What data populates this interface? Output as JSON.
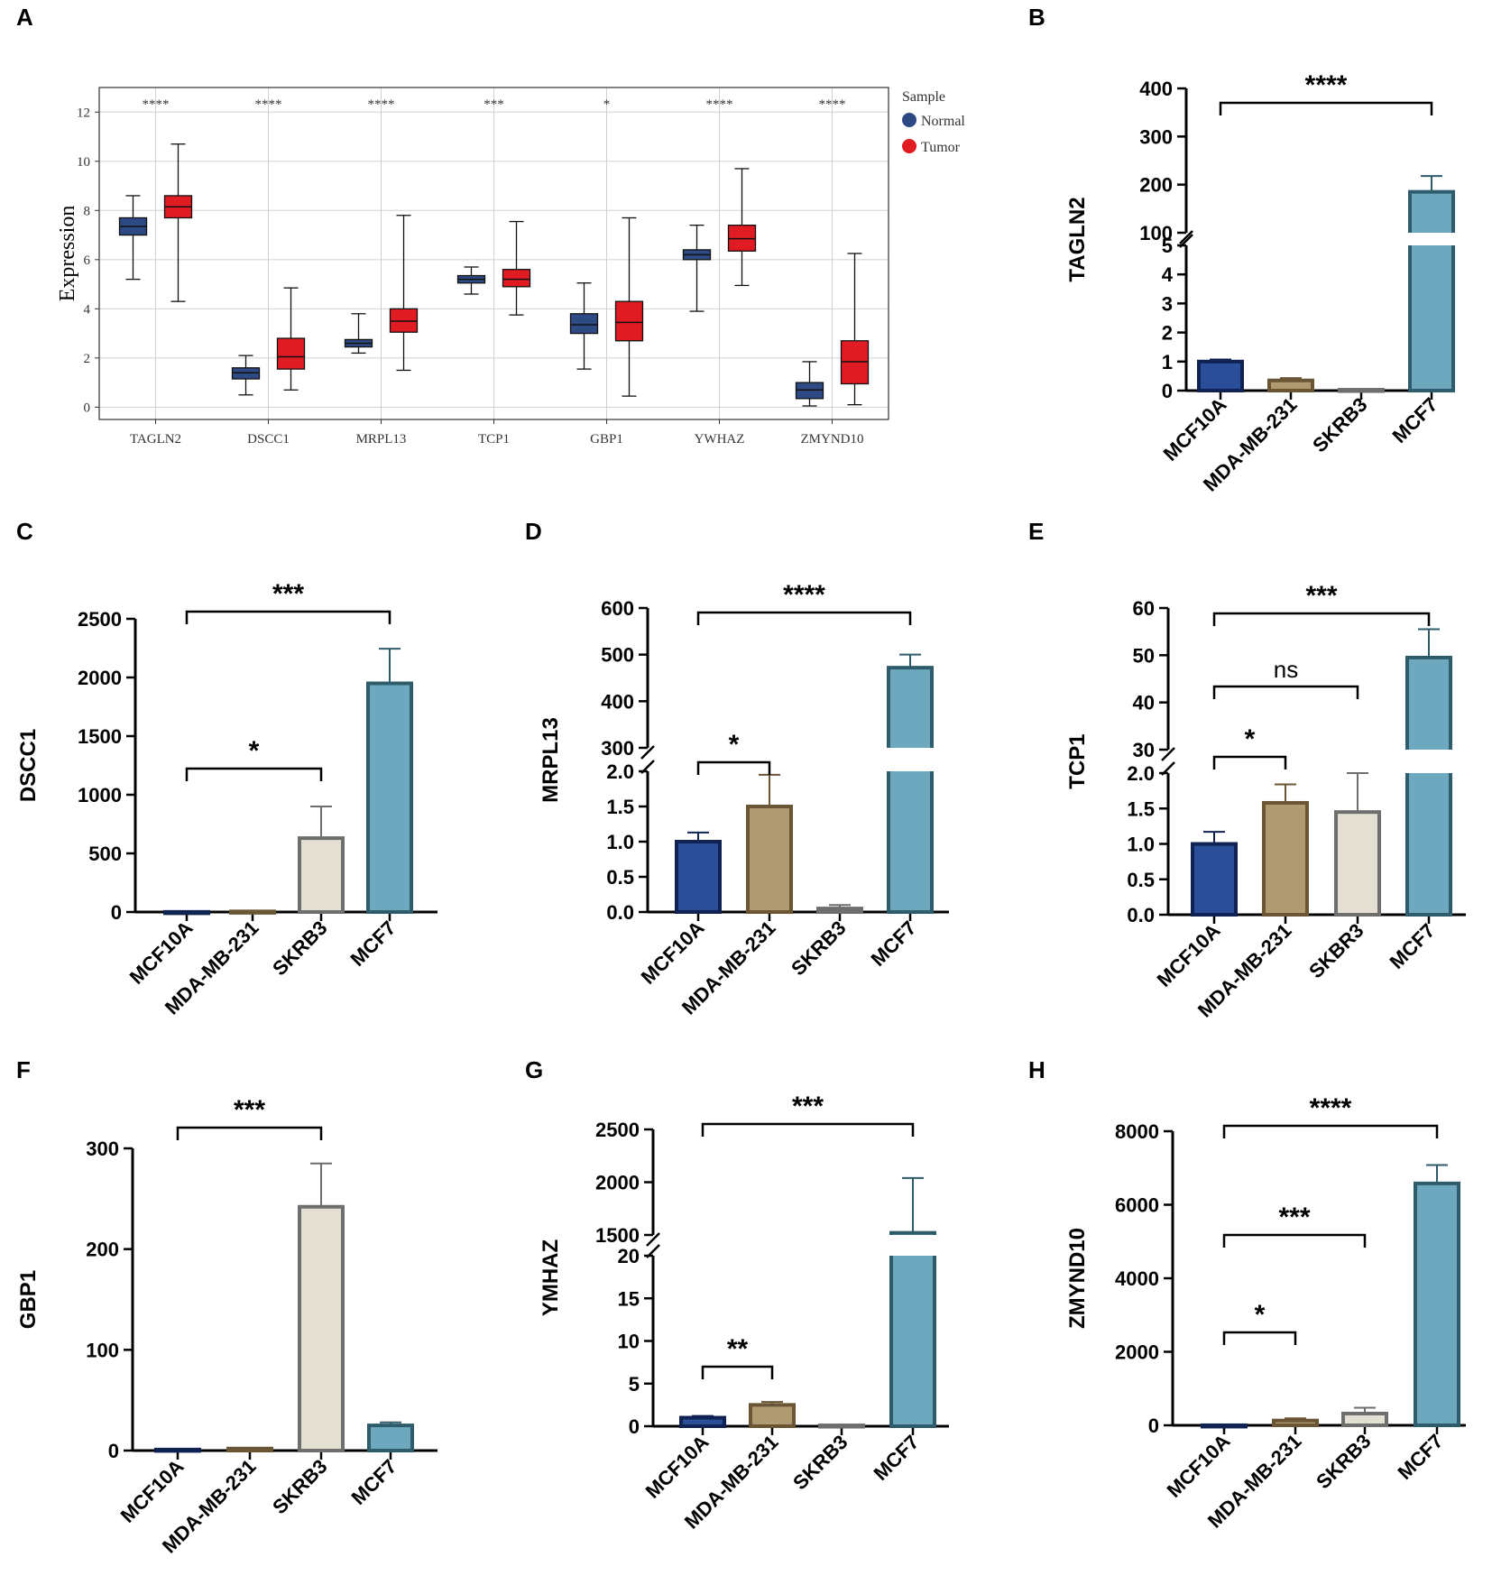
{
  "colors": {
    "normal": "#2e4a84",
    "tumor": "#e01b22",
    "bar_fills": [
      "#2a4f98",
      "#b09a72",
      "#e3dfd3",
      "#6ea8bf"
    ],
    "bar_strokes": [
      "#0f2252",
      "#6a5634",
      "#6e6e6e",
      "#2f5c6b"
    ],
    "grid": "#d0d0d0",
    "axis": "#000000"
  },
  "chart_data": [
    {
      "panel": "A",
      "type": "boxplot",
      "ylabel": "Expression",
      "ylim": [
        -0.5,
        13
      ],
      "yticks": [
        0,
        2,
        4,
        6,
        8,
        10,
        12
      ],
      "categories": [
        "TAGLN2",
        "DSCC1",
        "MRPL13",
        "TCP1",
        "GBP1",
        "YWHAZ",
        "ZMYND10"
      ],
      "significance": [
        "****",
        "****",
        "****",
        "***",
        "*",
        "****",
        "****"
      ],
      "legend_title": "Sample",
      "series": [
        {
          "name": "Normal",
          "boxes": [
            {
              "min": 5.2,
              "q1": 7.0,
              "median": 7.35,
              "q3": 7.7,
              "max": 8.6
            },
            {
              "min": 0.5,
              "q1": 1.15,
              "median": 1.4,
              "q3": 1.6,
              "max": 2.1
            },
            {
              "min": 2.2,
              "q1": 2.45,
              "median": 2.6,
              "q3": 2.75,
              "max": 3.8
            },
            {
              "min": 4.6,
              "q1": 5.05,
              "median": 5.2,
              "q3": 5.35,
              "max": 5.7
            },
            {
              "min": 1.55,
              "q1": 3.0,
              "median": 3.35,
              "q3": 3.8,
              "max": 5.05
            },
            {
              "min": 3.9,
              "q1": 6.0,
              "median": 6.2,
              "q3": 6.4,
              "max": 7.4
            },
            {
              "min": 0.05,
              "q1": 0.35,
              "median": 0.7,
              "q3": 1.0,
              "max": 1.85
            }
          ]
        },
        {
          "name": "Tumor",
          "boxes": [
            {
              "min": 4.3,
              "q1": 7.7,
              "median": 8.15,
              "q3": 8.6,
              "max": 10.7
            },
            {
              "min": 0.7,
              "q1": 1.55,
              "median": 2.05,
              "q3": 2.8,
              "max": 4.85
            },
            {
              "min": 1.5,
              "q1": 3.05,
              "median": 3.5,
              "q3": 4.0,
              "max": 7.8
            },
            {
              "min": 3.75,
              "q1": 4.9,
              "median": 5.2,
              "q3": 5.6,
              "max": 7.55
            },
            {
              "min": 0.45,
              "q1": 2.7,
              "median": 3.45,
              "q3": 4.3,
              "max": 7.7
            },
            {
              "min": 4.95,
              "q1": 6.35,
              "median": 6.85,
              "q3": 7.4,
              "max": 9.7
            },
            {
              "min": 0.1,
              "q1": 0.95,
              "median": 1.85,
              "q3": 2.7,
              "max": 6.25
            }
          ]
        }
      ]
    },
    {
      "panel": "B",
      "type": "bar",
      "ylabel": "TAGLN2",
      "categories": [
        "MCF10A",
        "MDA-MB-231",
        "SKRB3",
        "MCF7"
      ],
      "values": [
        1.0,
        0.35,
        0.03,
        185
      ],
      "errors": [
        0.07,
        0.08,
        0.02,
        33
      ],
      "axis_break": true,
      "lower_ticks": [
        0,
        1,
        2,
        3,
        4,
        5
      ],
      "upper_ticks": [
        100,
        200,
        300,
        400
      ],
      "comparisons": [
        {
          "from": 0,
          "to": 3,
          "label": "****"
        }
      ]
    },
    {
      "panel": "C",
      "type": "bar",
      "ylabel": "DSCC1",
      "categories": [
        "MCF10A",
        "MDA-MB-231",
        "SKRB3",
        "MCF7"
      ],
      "values": [
        1.0,
        5,
        630,
        1950
      ],
      "errors": [
        0,
        0,
        270,
        295
      ],
      "ylim": [
        0,
        2500
      ],
      "yticks": [
        0,
        500,
        1000,
        1500,
        2000,
        2500
      ],
      "comparisons": [
        {
          "from": 0,
          "to": 2,
          "label": "*"
        },
        {
          "from": 0,
          "to": 3,
          "label": "***"
        }
      ]
    },
    {
      "panel": "D",
      "type": "bar",
      "ylabel": "MRPL13",
      "categories": [
        "MCF10A",
        "MDA-MB-231",
        "SKRB3",
        "MCF7"
      ],
      "values": [
        1.0,
        1.5,
        0.05,
        472
      ],
      "errors": [
        0.13,
        0.45,
        0.05,
        28
      ],
      "axis_break": true,
      "lower_ticks": [
        "0.0",
        "0.5",
        "1.0",
        "1.5",
        "2.0"
      ],
      "upper_ticks": [
        300,
        400,
        500,
        600
      ],
      "comparisons": [
        {
          "from": 0,
          "to": 1,
          "label": "*"
        },
        {
          "from": 0,
          "to": 3,
          "label": "****"
        }
      ]
    },
    {
      "panel": "E",
      "type": "bar",
      "ylabel": "TCP1",
      "categories": [
        "MCF10A",
        "MDA-MB-231",
        "SKBR3",
        "MCF7"
      ],
      "values": [
        1.0,
        1.58,
        1.45,
        49.5
      ],
      "errors": [
        0.17,
        0.26,
        0.55,
        6
      ],
      "axis_break": true,
      "lower_ticks": [
        "0.0",
        "0.5",
        "1.0",
        "1.5",
        "2.0"
      ],
      "upper_ticks": [
        30,
        40,
        50,
        60
      ],
      "comparisons": [
        {
          "from": 0,
          "to": 1,
          "label": "*"
        },
        {
          "from": 0,
          "to": 2,
          "label": "ns"
        },
        {
          "from": 0,
          "to": 3,
          "label": "***"
        }
      ]
    },
    {
      "panel": "F",
      "type": "bar",
      "ylabel": "GBP1",
      "categories": [
        "MCF10A",
        "MDA-MB-231",
        "SKRB3",
        "MCF7"
      ],
      "values": [
        1.0,
        2.0,
        242,
        25
      ],
      "errors": [
        0,
        0.4,
        43,
        3
      ],
      "ylim": [
        0,
        300
      ],
      "yticks": [
        0,
        100,
        200,
        300
      ],
      "comparisons": [
        {
          "from": 0,
          "to": 2,
          "label": "***"
        }
      ]
    },
    {
      "panel": "G",
      "type": "bar",
      "ylabel": "YMHAZ",
      "categories": [
        "MCF10A",
        "MDA-MB-231",
        "SKRB3",
        "MCF7"
      ],
      "values": [
        1.0,
        2.5,
        0.1,
        1520
      ],
      "errors": [
        0.2,
        0.35,
        0,
        520
      ],
      "axis_break": true,
      "lower_ticks": [
        0,
        5,
        10,
        15,
        20
      ],
      "upper_ticks": [
        1500,
        2000,
        2500
      ],
      "comparisons": [
        {
          "from": 0,
          "to": 1,
          "label": "**"
        },
        {
          "from": 0,
          "to": 3,
          "label": "***"
        }
      ]
    },
    {
      "panel": "H",
      "type": "bar",
      "ylabel": "ZMYND10",
      "categories": [
        "MCF10A",
        "MDA-MB-231",
        "SKRB3",
        "MCF7"
      ],
      "values": [
        1.0,
        130,
        320,
        6580
      ],
      "errors": [
        0,
        60,
        160,
        500
      ],
      "ylim": [
        0,
        8000
      ],
      "yticks": [
        0,
        2000,
        4000,
        6000,
        8000
      ],
      "comparisons": [
        {
          "from": 0,
          "to": 1,
          "label": "*"
        },
        {
          "from": 0,
          "to": 2,
          "label": "***"
        },
        {
          "from": 0,
          "to": 3,
          "label": "****"
        }
      ]
    }
  ]
}
